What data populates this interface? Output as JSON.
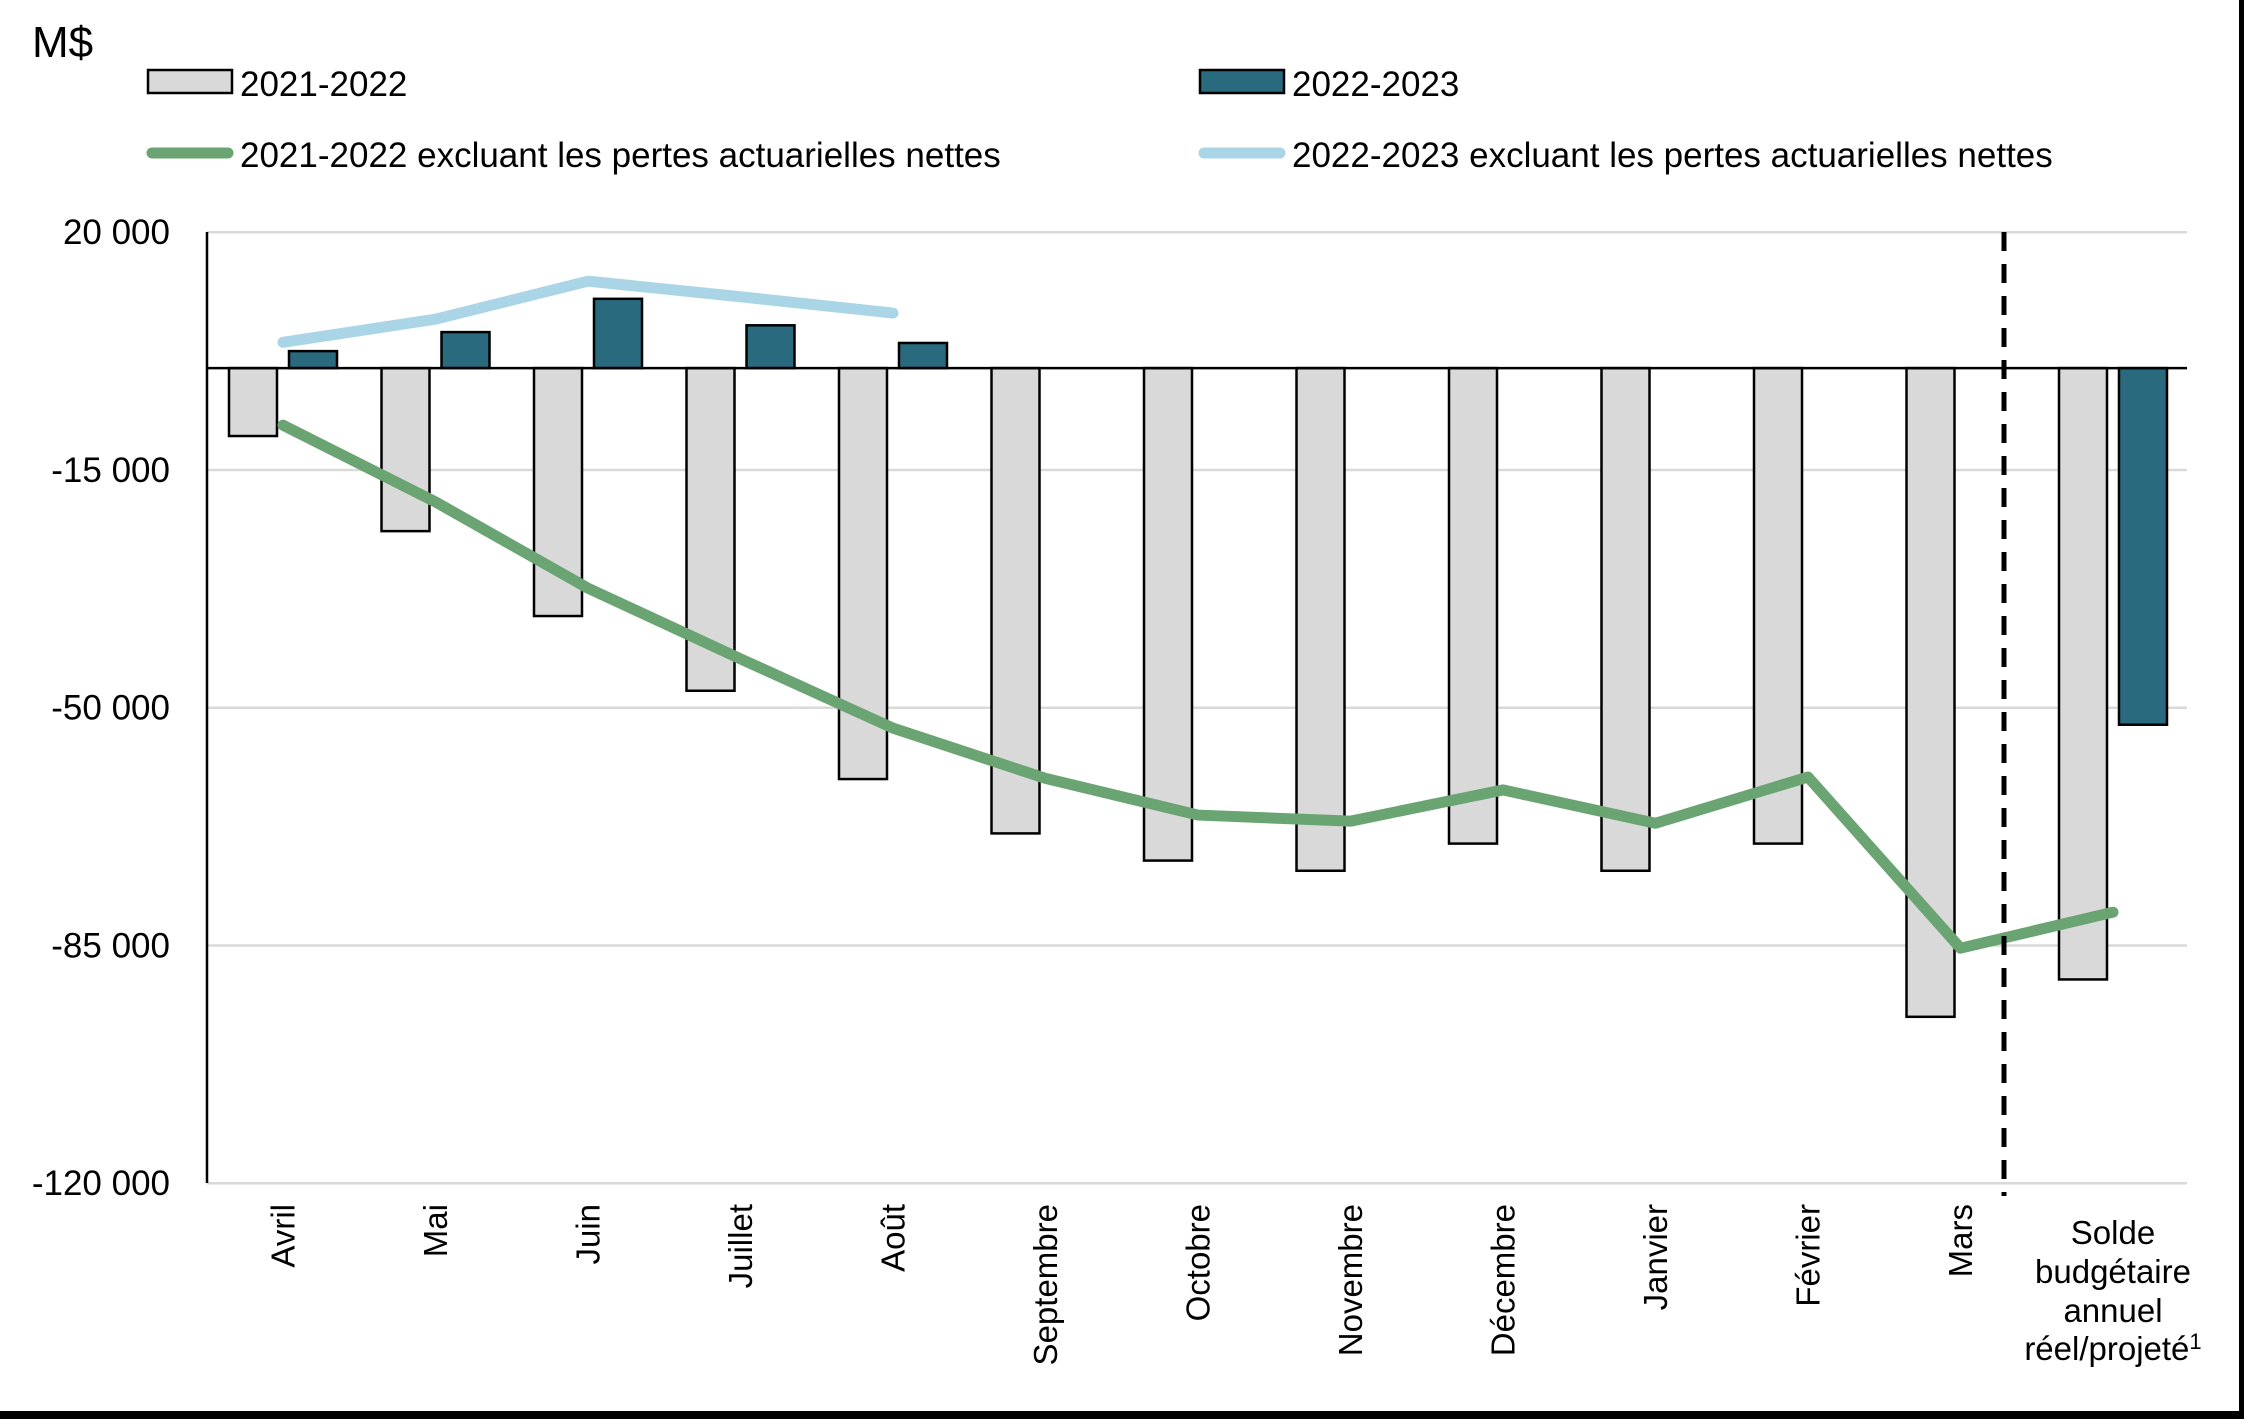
{
  "unit_label": "M$",
  "legend": {
    "bar_2021_2022": "2021-2022",
    "bar_2022_2023": "2022-2023",
    "line_2021_2022": "2021-2022 excluant les pertes actuarielles nettes",
    "line_2022_2023": "2022-2023 excluant les pertes actuarielles nettes"
  },
  "colors": {
    "bar_2021_2022": "#d9d9d9",
    "bar_2022_2023": "#2a6a7e",
    "line_2021_2022": "#6ba473",
    "line_2022_2023": "#a9d5e6",
    "bar_border": "#000000",
    "gridline": "#d9d9d9",
    "axis": "#000000",
    "separator": "#000000",
    "frame": "#000000"
  },
  "chart_data": {
    "type": "combo-bar-line",
    "unit": "M$",
    "categories": [
      "Avril",
      "Mai",
      "Juin",
      "Juillet",
      "Août",
      "Septembre",
      "Octobre",
      "Novembre",
      "Décembre",
      "Janvier",
      "Février",
      "Mars",
      "Solde budgétaire annuel réel/projeté¹"
    ],
    "last_category_lines": [
      "Solde",
      "budgétaire",
      "annuel",
      "réel/projeté"
    ],
    "last_category_superscript": "1",
    "series": [
      {
        "name": "2021-2022",
        "type": "bar",
        "color": "#d9d9d9",
        "values": [
          -10000,
          -24000,
          -36500,
          -47500,
          -60500,
          -68500,
          -72500,
          -74000,
          -70000,
          -74000,
          -70000,
          -95500,
          -90000
        ]
      },
      {
        "name": "2022-2023",
        "type": "bar",
        "color": "#2a6a7e",
        "values": [
          2500,
          5300,
          10200,
          6300,
          3700,
          null,
          null,
          null,
          null,
          null,
          null,
          null,
          -52500
        ]
      },
      {
        "name": "2021-2022 excluant les pertes actuarielles nettes",
        "type": "line",
        "color": "#6ba473",
        "values": [
          -8400,
          -19700,
          -32400,
          -42800,
          -53000,
          -60400,
          -65800,
          -66700,
          -62100,
          -67000,
          -60200,
          -85400,
          -80100
        ]
      },
      {
        "name": "2022-2023 excluant les pertes actuarielles nettes",
        "type": "line",
        "color": "#a9d5e6",
        "values": [
          3800,
          7200,
          12800,
          10500,
          8100,
          null,
          null,
          null,
          null,
          null,
          null,
          null,
          null
        ]
      }
    ],
    "yticks": [
      {
        "label": "20 000",
        "value": 20000
      },
      {
        "label": "-15 000",
        "value": -15000
      },
      {
        "label": "-50 000",
        "value": -50000
      },
      {
        "label": "-85 000",
        "value": -85000
      },
      {
        "label": "-120 000",
        "value": -120000
      }
    ],
    "ylim": [
      -120000,
      20000
    ],
    "grid": true,
    "zero_line": true,
    "separator_dashed_before_last_category": true,
    "legend_position": "top"
  }
}
